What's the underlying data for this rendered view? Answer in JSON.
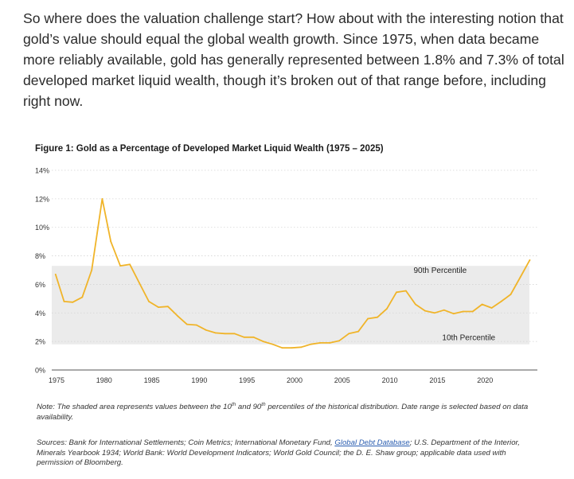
{
  "article": {
    "paragraph": "So where does the valuation challenge start? How about with the interesting notion that gold’s value should equal the global wealth growth. Since 1975, when data became more reliably available, gold has generally represented between 1.8% and 7.3% of total developed market liquid wealth, though it’s broken out of that range before, including right now."
  },
  "figure": {
    "note_prefix": "Note: The shaded area represents values between the 10",
    "note_sup1": "th",
    "note_mid": " and 90",
    "note_sup2": "th",
    "note_suffix": " percentiles of the historical distribution. Date range is selected based on data availability.",
    "sources_prefix": "Sources: Bank for International Settlements; Coin Metrics; International Monetary Fund, ",
    "sources_link": "Global Debt Database",
    "sources_suffix": "; U.S. Department of the Interior, Minerals Yearbook 1934; World Bank: World Development Indicators; World Gold Council; the D. E. Shaw group; applicable data used with permission of Bloomberg."
  },
  "chart_data": {
    "type": "line",
    "title": "Figure 1: Gold as a Percentage of Developed Market Liquid Wealth (1975 – 2025)",
    "xlabel": "",
    "ylabel": "",
    "xlim": [
      1974.5,
      2025.5
    ],
    "ylim": [
      0,
      14
    ],
    "y_ticks": [
      0,
      2,
      4,
      6,
      8,
      10,
      12,
      14
    ],
    "y_tick_labels": [
      "0%",
      "2%",
      "4%",
      "6%",
      "8%",
      "10%",
      "12%",
      "14%"
    ],
    "x_ticks": [
      1975,
      1980,
      1985,
      1990,
      1995,
      2000,
      2005,
      2010,
      2015,
      2020
    ],
    "x_tick_labels": [
      "1975",
      "1980",
      "1985",
      "1990",
      "1995",
      "2000",
      "2005",
      "2010",
      "2015",
      "2020"
    ],
    "grid": "horizontal dotted",
    "band": {
      "low": 1.8,
      "high": 7.3,
      "color": "#ebebeb"
    },
    "band_labels": {
      "high": {
        "text": "90th Percentile",
        "x": 2012.5,
        "y": 6.8
      },
      "low": {
        "text": "10th Percentile",
        "x": 2015.5,
        "y": 2.1
      }
    },
    "series": [
      {
        "color": "#f0b429",
        "points": [
          [
            1974.9,
            6.7
          ],
          [
            1975.8,
            4.8
          ],
          [
            1976.7,
            4.75
          ],
          [
            1977.7,
            5.1
          ],
          [
            1978.7,
            7.0
          ],
          [
            1979.8,
            12.0
          ],
          [
            1980.7,
            9.0
          ],
          [
            1981.7,
            7.3
          ],
          [
            1982.7,
            7.4
          ],
          [
            1983.7,
            6.1
          ],
          [
            1984.7,
            4.8
          ],
          [
            1985.7,
            4.4
          ],
          [
            1986.7,
            4.45
          ],
          [
            1987.7,
            3.8
          ],
          [
            1988.7,
            3.2
          ],
          [
            1989.7,
            3.15
          ],
          [
            1990.7,
            2.8
          ],
          [
            1991.7,
            2.6
          ],
          [
            1992.7,
            2.55
          ],
          [
            1993.7,
            2.55
          ],
          [
            1994.7,
            2.3
          ],
          [
            1995.7,
            2.3
          ],
          [
            1996.7,
            2.0
          ],
          [
            1997.7,
            1.8
          ],
          [
            1998.7,
            1.55
          ],
          [
            1999.7,
            1.55
          ],
          [
            2000.7,
            1.6
          ],
          [
            2001.7,
            1.8
          ],
          [
            2002.7,
            1.9
          ],
          [
            2003.7,
            1.9
          ],
          [
            2004.7,
            2.05
          ],
          [
            2005.7,
            2.55
          ],
          [
            2006.7,
            2.7
          ],
          [
            2007.7,
            3.6
          ],
          [
            2008.7,
            3.7
          ],
          [
            2009.7,
            4.3
          ],
          [
            2010.7,
            5.45
          ],
          [
            2011.7,
            5.55
          ],
          [
            2012.7,
            4.6
          ],
          [
            2013.7,
            4.15
          ],
          [
            2014.7,
            4.0
          ],
          [
            2015.7,
            4.2
          ],
          [
            2016.7,
            3.95
          ],
          [
            2017.7,
            4.1
          ],
          [
            2018.7,
            4.1
          ],
          [
            2019.7,
            4.6
          ],
          [
            2020.7,
            4.35
          ],
          [
            2021.7,
            4.8
          ],
          [
            2022.7,
            5.3
          ],
          [
            2023.7,
            6.5
          ],
          [
            2024.7,
            7.7
          ]
        ]
      }
    ]
  }
}
